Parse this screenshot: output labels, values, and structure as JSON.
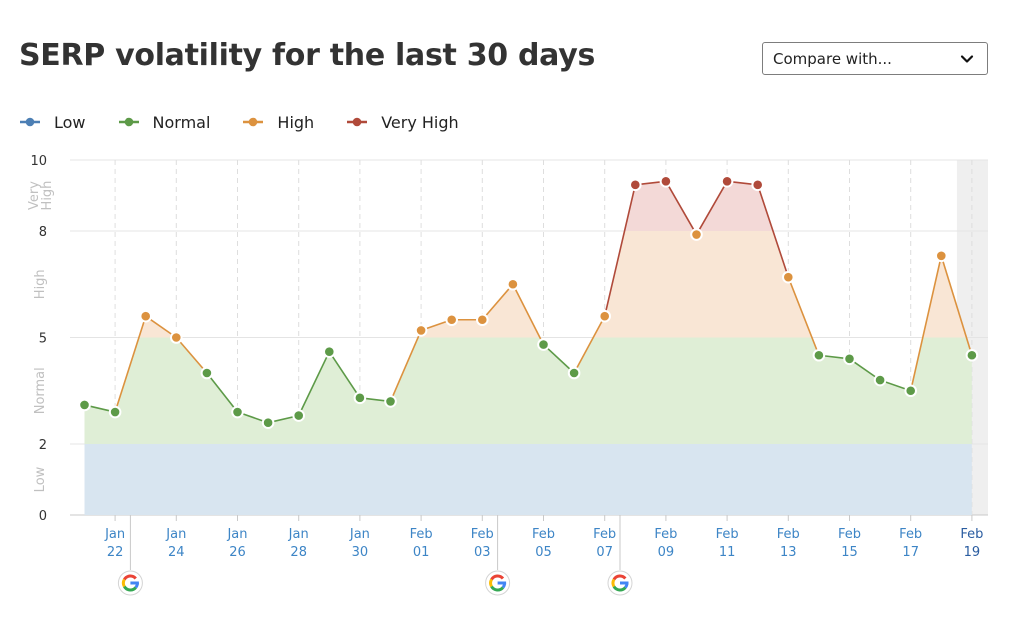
{
  "header": {
    "title": "SERP volatility for the last 30 days",
    "compare_label": "Compare with..."
  },
  "icons": {
    "compare_dropdown": "chevron-down-icon",
    "google_marker": "google-g-icon"
  },
  "legend": [
    {
      "label": "Low",
      "color": "#4c7fb4"
    },
    {
      "label": "Normal",
      "color": "#5d9a48"
    },
    {
      "label": "High",
      "color": "#dc923f"
    },
    {
      "label": "Very High",
      "color": "#b04a3a"
    }
  ],
  "chart_data": {
    "type": "area",
    "y_ticks": [
      0,
      2,
      5,
      8,
      10
    ],
    "ylim": [
      0,
      10
    ],
    "band_labels": [
      {
        "label": "Low",
        "from": 0,
        "to": 2
      },
      {
        "label": "Normal",
        "from": 2,
        "to": 5
      },
      {
        "label": "High",
        "from": 5,
        "to": 8
      },
      {
        "label": "Very High",
        "from": 8,
        "to": 10
      }
    ],
    "band_colors": {
      "low": "#d8e5f0",
      "normal": "#dfeed6",
      "high": "#f9e6d5",
      "very_high": "#f3d9d7"
    },
    "x_tick_labels": [
      [
        "Jan",
        "22"
      ],
      [
        "Jan",
        "24"
      ],
      [
        "Jan",
        "26"
      ],
      [
        "Jan",
        "28"
      ],
      [
        "Jan",
        "30"
      ],
      [
        "Feb",
        "01"
      ],
      [
        "Feb",
        "03"
      ],
      [
        "Feb",
        "05"
      ],
      [
        "Feb",
        "07"
      ],
      [
        "Feb",
        "09"
      ],
      [
        "Feb",
        "11"
      ],
      [
        "Feb",
        "13"
      ],
      [
        "Feb",
        "15"
      ],
      [
        "Feb",
        "17"
      ],
      [
        "Feb",
        "19"
      ]
    ],
    "x_tick_indices": [
      1,
      3,
      5,
      7,
      9,
      11,
      13,
      15,
      17,
      19,
      21,
      23,
      25,
      27,
      29
    ],
    "values": [
      3.1,
      2.9,
      5.6,
      5.0,
      4.0,
      2.9,
      2.6,
      2.8,
      4.6,
      3.3,
      3.2,
      5.2,
      5.5,
      5.5,
      6.5,
      4.8,
      4.0,
      5.6,
      9.3,
      9.4,
      7.9,
      9.4,
      9.3,
      6.7,
      4.5,
      4.4,
      3.8,
      3.5,
      7.3,
      4.5
    ],
    "google_updates_between": [
      [
        1,
        2
      ],
      [
        13,
        14
      ],
      [
        17,
        18
      ]
    ],
    "highlight_index": 29
  }
}
